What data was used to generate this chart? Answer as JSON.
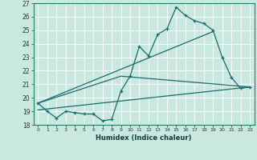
{
  "xlabel": "Humidex (Indice chaleur)",
  "bg_color": "#c8e8e0",
  "grid_color": "#ffffff",
  "line_color": "#1a6b6b",
  "xlim": [
    -0.5,
    23.5
  ],
  "ylim": [
    18,
    27
  ],
  "xticks": [
    0,
    1,
    2,
    3,
    4,
    5,
    6,
    7,
    8,
    9,
    10,
    11,
    12,
    13,
    14,
    15,
    16,
    17,
    18,
    19,
    20,
    21,
    22,
    23
  ],
  "yticks": [
    18,
    19,
    20,
    21,
    22,
    23,
    24,
    25,
    26,
    27
  ],
  "series1_x": [
    0,
    1,
    2,
    3,
    4,
    5,
    6,
    7,
    8,
    9,
    10,
    11,
    12,
    13,
    14,
    15,
    16,
    17,
    18,
    19,
    20,
    21,
    22,
    23
  ],
  "series1_y": [
    19.6,
    19.0,
    18.5,
    19.0,
    18.9,
    18.8,
    18.8,
    18.3,
    18.4,
    20.5,
    21.6,
    23.8,
    23.1,
    24.7,
    25.1,
    26.7,
    26.1,
    25.7,
    25.5,
    25.0,
    23.0,
    21.5,
    20.7,
    20.8
  ],
  "line1_x": [
    0,
    19
  ],
  "line1_y": [
    19.6,
    24.9
  ],
  "line2_x": [
    0,
    9,
    23
  ],
  "line2_y": [
    19.6,
    21.6,
    20.8
  ],
  "line3_x": [
    0,
    23
  ],
  "line3_y": [
    19.1,
    20.8
  ]
}
